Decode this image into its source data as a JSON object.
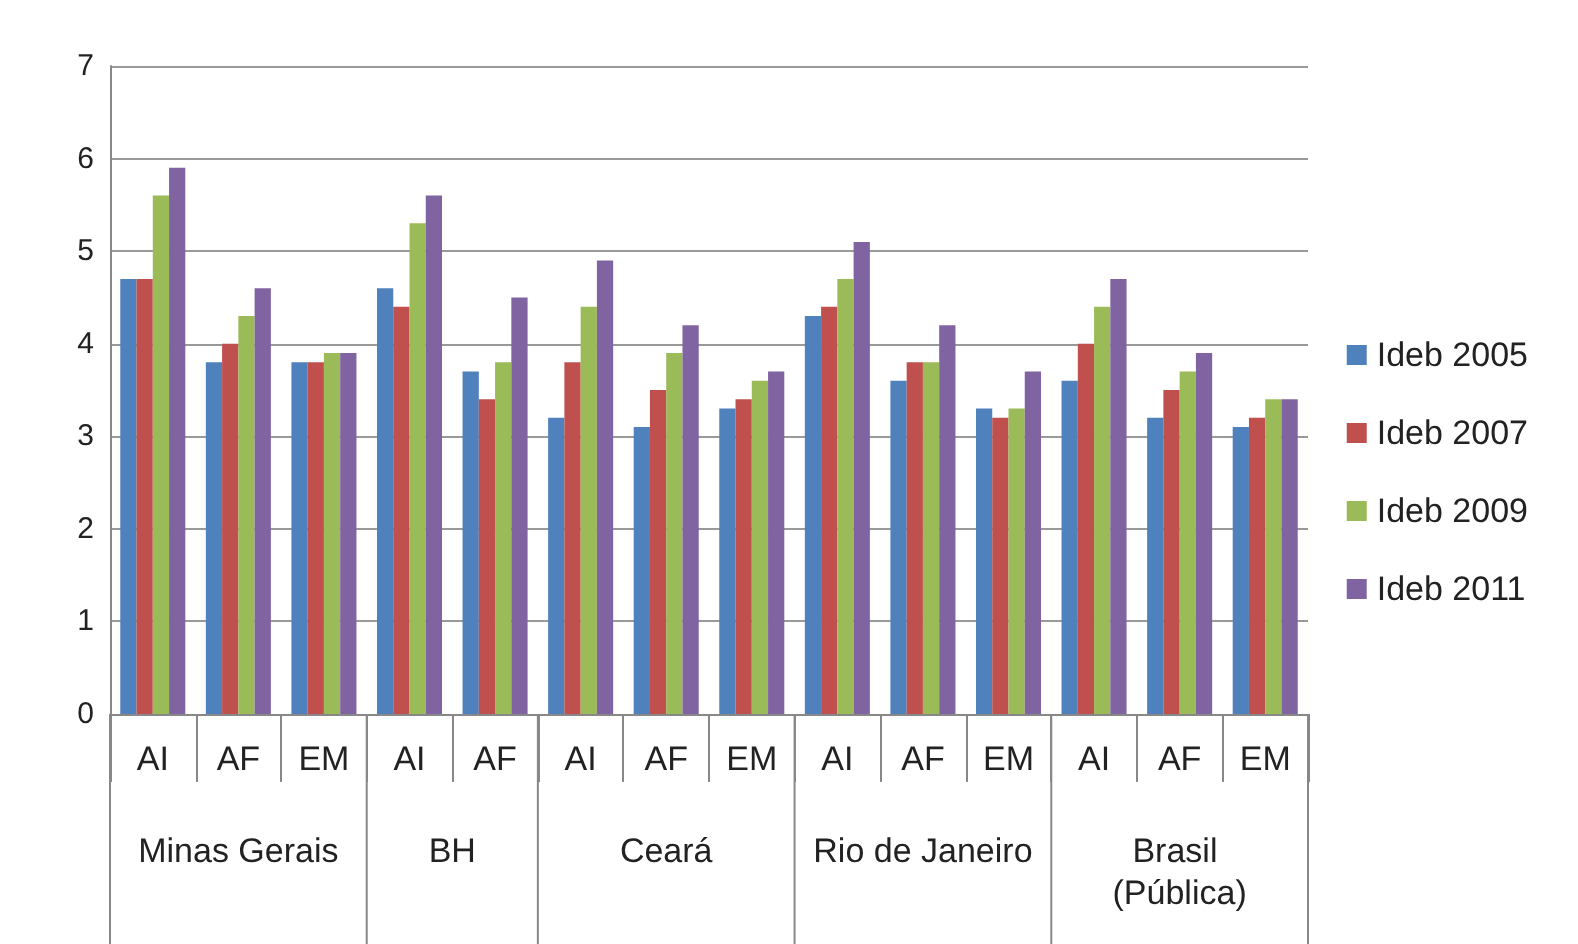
{
  "chart_data": {
    "type": "bar",
    "categories": [
      "AI",
      "AF",
      "EM",
      "AI",
      "AF",
      "AI",
      "AF",
      "EM",
      "AI",
      "AF",
      "EM",
      "AI",
      "AF",
      "EM"
    ],
    "series": [
      {
        "name": "Ideb 2005",
        "color": "#4f81bd",
        "values": [
          4.7,
          3.8,
          3.8,
          4.6,
          3.7,
          3.2,
          3.1,
          3.3,
          4.3,
          3.6,
          3.3,
          3.6,
          3.2,
          3.1
        ]
      },
      {
        "name": "Ideb 2007",
        "color": "#c0504d",
        "values": [
          4.7,
          4.0,
          3.8,
          4.4,
          3.4,
          3.8,
          3.5,
          3.4,
          4.4,
          3.8,
          3.2,
          4.0,
          3.5,
          3.2
        ]
      },
      {
        "name": "Ideb 2009",
        "color": "#9bbb59",
        "values": [
          5.6,
          4.3,
          3.9,
          5.3,
          3.8,
          4.4,
          3.9,
          3.6,
          4.7,
          3.8,
          3.3,
          4.4,
          3.7,
          3.4
        ]
      },
      {
        "name": "Ideb 2011",
        "color": "#8064a2",
        "values": [
          5.9,
          4.6,
          3.9,
          5.6,
          4.5,
          4.9,
          4.2,
          3.7,
          5.1,
          4.2,
          3.7,
          4.7,
          3.9,
          3.4
        ]
      }
    ],
    "annotations": [
      "Minas Gerais",
      "BH",
      "Ceará",
      "Rio de Janeiro",
      "Brasil (Pública)"
    ],
    "ylim": [
      0,
      7
    ],
    "yticks": [
      0,
      1,
      2,
      3,
      4,
      5,
      6,
      7
    ],
    "grid": "y",
    "legend": "right"
  }
}
